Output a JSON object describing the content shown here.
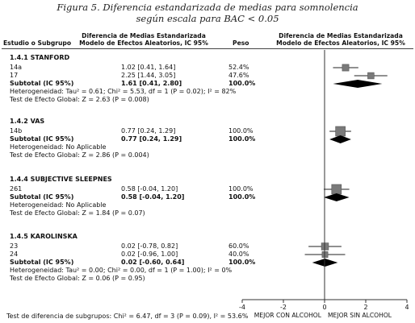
{
  "figure": {
    "caption_line1": "Figura 5. Diferencia estandarizada de medias para somnolencia",
    "caption_line2": "según escala para BAC < 0.05"
  },
  "headers": {
    "study": "Estudio o Subgrupo",
    "smd_line1": "Diferencia de Medias Estandarizada",
    "smd_line2": "Modelo de Efectos Aleatorios, IC 95%",
    "weight": "Peso",
    "plot_line1": "Diferencia de Medias Estandarizada",
    "plot_line2": "Modelo de Efectos Aleatorios, IC 95%"
  },
  "chart_data": {
    "type": "forest",
    "xlim": [
      -4,
      4
    ],
    "xticks": [
      "-4",
      "-2",
      "0",
      "2",
      "4"
    ],
    "xlabel_left": "MEJOR CON ALCOHOL",
    "xlabel_right": "MEJOR SIN ALCOHOL",
    "subgroups": [
      {
        "title": "1.4.1 STANFORD",
        "studies": [
          {
            "name": "14a",
            "ci_text": "1.02 [0.41, 1.64]",
            "weight": "52.4%",
            "est": 1.02,
            "lo": 0.41,
            "hi": 1.64
          },
          {
            "name": "17",
            "ci_text": "2.25 [1.44, 3.05]",
            "weight": "47.6%",
            "est": 2.25,
            "lo": 1.44,
            "hi": 3.05
          }
        ],
        "subtotal": {
          "label": "Subtotal (IC 95%)",
          "ci_text": "1.61 [0.41, 2.80]",
          "weight": "100.0%",
          "est": 1.61,
          "lo": 0.41,
          "hi": 2.8
        },
        "heterogeneity": "Heterogeneidad: Tau² = 0.61; Chi² = 5.53, df = 1 (P = 0.02); I² = 82%",
        "effect_test": "Test de Efecto Global: Z = 2.63 (P = 0.008)"
      },
      {
        "title": "1.4.2 VAS",
        "studies": [
          {
            "name": "14b",
            "ci_text": "0.77 [0.24, 1.29]",
            "weight": "100.0%",
            "est": 0.77,
            "lo": 0.24,
            "hi": 1.29
          }
        ],
        "subtotal": {
          "label": "Subtotal (IC 95%)",
          "ci_text": "0.77 [0.24, 1.29]",
          "weight": "100.0%",
          "est": 0.77,
          "lo": 0.24,
          "hi": 1.29
        },
        "heterogeneity": "Heterogeneidad: No Aplicable",
        "effect_test": "Test de Efecto Global: Z = 2.86 (P = 0.004)"
      },
      {
        "title": "1.4.4 SUBJECTIVE SLEEPNES",
        "studies": [
          {
            "name": "261",
            "ci_text": "0.58 [-0.04, 1.20]",
            "weight": "100.0%",
            "est": 0.58,
            "lo": -0.04,
            "hi": 1.2
          }
        ],
        "subtotal": {
          "label": "Subtotal (IC 95%)",
          "ci_text": "0.58 [-0.04, 1.20]",
          "weight": "100.0%",
          "est": 0.58,
          "lo": -0.04,
          "hi": 1.2
        },
        "heterogeneity": "Heterogeneidad: No Aplicable",
        "effect_test": "Test de Efecto Global: Z = 1.84 (P = 0.07)"
      },
      {
        "title": "1.4.5 KAROLINSKA",
        "studies": [
          {
            "name": "23",
            "ci_text": "0.02 [-0.78, 0.82]",
            "weight": "60.0%",
            "est": 0.02,
            "lo": -0.78,
            "hi": 0.82
          },
          {
            "name": "24",
            "ci_text": "0.02 [-0.96, 1.00]",
            "weight": "40.0%",
            "est": 0.02,
            "lo": -0.96,
            "hi": 1.0
          }
        ],
        "subtotal": {
          "label": "Subtotal (IC 95%)",
          "ci_text": "0.02 [-0.60, 0.64]",
          "weight": "100.0%",
          "est": 0.02,
          "lo": -0.6,
          "hi": 0.64
        },
        "heterogeneity": "Heterogeneidad: Tau² = 0.00; Chi² = 0.00, df = 1 (P = 1.00); I² = 0%",
        "effect_test": "Test de Efecto Global: Z = 0.06 (P = 0.95)"
      }
    ],
    "subgroup_test": "Test de diferencia de subgrupos: Chi² = 6.47, df = 3 (P = 0.09), I² = 53.6%"
  }
}
